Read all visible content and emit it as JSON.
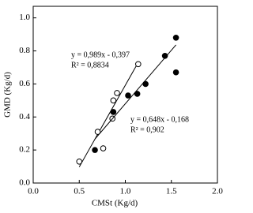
{
  "chart_data": {
    "type": "scatter",
    "xlabel": "CMSt (Kg/d)",
    "ylabel": "GMD (Kg/d)",
    "xlim": [
      0,
      2
    ],
    "ylim": [
      0,
      1.07
    ],
    "xticks": [
      {
        "value": 0,
        "label": "0.0"
      },
      {
        "value": 0.5,
        "label": "0.5"
      },
      {
        "value": 1,
        "label": "1.0"
      },
      {
        "value": 1.5,
        "label": "1.5"
      },
      {
        "value": 2,
        "label": "2.0"
      }
    ],
    "yticks": [
      {
        "value": 0,
        "label": "0.0"
      },
      {
        "value": 0.2,
        "label": "0.2"
      },
      {
        "value": 0.4,
        "label": "0.4"
      },
      {
        "value": 0.6,
        "label": "0.6"
      },
      {
        "value": 0.8,
        "label": "0.8"
      },
      {
        "value": 1,
        "label": "1.0"
      }
    ],
    "series": [
      {
        "marker": "open",
        "color": "#000000",
        "x": [
          0.5,
          0.7,
          0.76,
          0.86,
          0.87,
          0.91,
          1.14
        ],
        "values": [
          0.13,
          0.31,
          0.21,
          0.39,
          0.5,
          0.545,
          0.72
        ],
        "fit": {
          "slope": 0.989,
          "intercept": -0.397
        },
        "annotations": [
          "y = 0,989x - 0,397",
          "R² = 0,8834"
        ]
      },
      {
        "marker": "filled",
        "color": "#000000",
        "x": [
          0.67,
          0.87,
          1.03,
          1.13,
          1.22,
          1.43,
          1.55,
          1.55
        ],
        "values": [
          0.2,
          0.43,
          0.53,
          0.54,
          0.6,
          0.77,
          0.88,
          0.67
        ],
        "fit": {
          "slope": 0.648,
          "intercept": -0.168
        },
        "annotations": [
          "y = 0,648x - 0,168",
          "R² = 0,902"
        ]
      }
    ]
  }
}
